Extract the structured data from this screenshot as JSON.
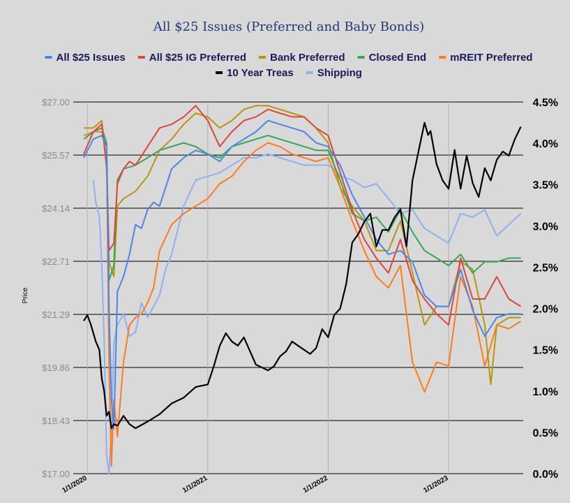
{
  "chart_data": {
    "type": "line",
    "title": "All $25 Issues (Preferred and Baby Bonds)",
    "ylabel": "Price",
    "y_left_ticks": [
      "$27.00",
      "$25.57",
      "$24.14",
      "$22.71",
      "$21.29",
      "$19.86",
      "$18.43",
      "$17.00"
    ],
    "y_right_ticks": [
      "4.5%",
      "4.0%",
      "3.5%",
      "3.0%",
      "2.5%",
      "2.0%",
      "1.5%",
      "1.0%",
      "0.5%",
      "0.0%"
    ],
    "ylim_left": [
      17.0,
      27.0
    ],
    "ylim_right": [
      0.0,
      4.5
    ],
    "x_ticks": [
      "1/1/2020",
      "1/1/2021",
      "1/1/2022",
      "1/1/2023"
    ],
    "xlim": [
      2019.97,
      2023.62
    ],
    "grid": "horizontal",
    "legend_placement": "top",
    "series": [
      {
        "name": "All $25 Issues",
        "color": "#4a86e8",
        "axis": "left",
        "x": [
          2019.97,
          2020.05,
          2020.12,
          2020.16,
          2020.18,
          2020.2,
          2020.22,
          2020.25,
          2020.3,
          2020.35,
          2020.4,
          2020.45,
          2020.5,
          2020.55,
          2020.6,
          2020.7,
          2020.8,
          2020.9,
          2021.0,
          2021.1,
          2021.2,
          2021.3,
          2021.4,
          2021.5,
          2021.6,
          2021.7,
          2021.8,
          2021.9,
          2022.0,
          2022.1,
          2022.2,
          2022.3,
          2022.4,
          2022.5,
          2022.6,
          2022.7,
          2022.8,
          2022.9,
          2023.0,
          2023.1,
          2023.2,
          2023.3,
          2023.4,
          2023.5,
          2023.6
        ],
        "y": [
          25.5,
          26.0,
          26.1,
          25.8,
          21.5,
          19.0,
          18.2,
          21.9,
          22.3,
          22.9,
          23.7,
          23.6,
          24.1,
          24.3,
          24.2,
          25.2,
          25.5,
          25.7,
          25.6,
          25.4,
          25.8,
          26.0,
          26.2,
          26.5,
          26.4,
          26.3,
          26.2,
          25.9,
          25.8,
          25.3,
          24.5,
          23.9,
          23.3,
          22.9,
          23.0,
          22.7,
          21.8,
          21.5,
          21.5,
          22.5,
          21.4,
          20.7,
          21.2,
          21.3,
          21.3
        ]
      },
      {
        "name": "All $25 IG Preferred",
        "color": "#e0443a",
        "axis": "left",
        "x": [
          2019.97,
          2020.05,
          2020.12,
          2020.16,
          2020.18,
          2020.22,
          2020.25,
          2020.3,
          2020.35,
          2020.4,
          2020.5,
          2020.6,
          2020.7,
          2020.8,
          2020.9,
          2021.0,
          2021.1,
          2021.2,
          2021.3,
          2021.4,
          2021.5,
          2021.6,
          2021.7,
          2021.8,
          2021.9,
          2022.0,
          2022.1,
          2022.2,
          2022.3,
          2022.4,
          2022.5,
          2022.6,
          2022.7,
          2022.8,
          2022.9,
          2023.0,
          2023.1,
          2023.2,
          2023.3,
          2023.4,
          2023.5,
          2023.6
        ],
        "y": [
          25.6,
          26.2,
          26.4,
          25.3,
          23.0,
          23.2,
          24.8,
          25.2,
          25.4,
          25.3,
          25.8,
          26.3,
          26.4,
          26.6,
          26.9,
          26.5,
          25.8,
          26.2,
          26.5,
          26.6,
          26.8,
          26.7,
          26.6,
          26.6,
          26.3,
          26.1,
          25.1,
          24.1,
          23.3,
          22.8,
          22.4,
          23.3,
          22.2,
          21.7,
          21.3,
          21.0,
          22.8,
          21.7,
          21.7,
          22.3,
          21.7,
          21.5
        ]
      },
      {
        "name": "Bank Preferred",
        "color": "#b8960c",
        "axis": "left",
        "x": [
          2019.97,
          2020.05,
          2020.12,
          2020.16,
          2020.18,
          2020.22,
          2020.25,
          2020.3,
          2020.4,
          2020.5,
          2020.6,
          2020.7,
          2020.8,
          2020.9,
          2021.0,
          2021.1,
          2021.2,
          2021.3,
          2021.4,
          2021.5,
          2021.6,
          2021.7,
          2021.8,
          2021.9,
          2022.0,
          2022.1,
          2022.2,
          2022.3,
          2022.4,
          2022.5,
          2022.6,
          2022.7,
          2022.8,
          2022.9,
          2023.0,
          2023.1,
          2023.2,
          2023.3,
          2023.35,
          2023.4,
          2023.5,
          2023.6
        ],
        "y": [
          26.3,
          26.3,
          26.5,
          25.2,
          22.7,
          22.3,
          24.2,
          24.4,
          24.6,
          25.0,
          25.7,
          26.0,
          26.4,
          26.7,
          26.6,
          26.3,
          26.5,
          26.8,
          26.9,
          26.9,
          26.8,
          26.7,
          26.6,
          26.3,
          25.9,
          24.7,
          24.2,
          23.8,
          23.0,
          23.0,
          23.8,
          22.4,
          21.0,
          21.5,
          21.5,
          22.7,
          22.5,
          21.0,
          19.4,
          21.0,
          21.2,
          21.2
        ]
      },
      {
        "name": "Closed End",
        "color": "#34a853",
        "axis": "left",
        "x": [
          2019.97,
          2020.05,
          2020.12,
          2020.16,
          2020.18,
          2020.22,
          2020.25,
          2020.3,
          2020.4,
          2020.5,
          2020.6,
          2020.7,
          2020.8,
          2020.9,
          2021.0,
          2021.1,
          2021.2,
          2021.3,
          2021.4,
          2021.5,
          2021.6,
          2021.7,
          2021.8,
          2021.9,
          2022.0,
          2022.1,
          2022.2,
          2022.3,
          2022.4,
          2022.5,
          2022.6,
          2022.7,
          2022.8,
          2022.9,
          2023.0,
          2023.1,
          2023.2,
          2023.3,
          2023.4,
          2023.5,
          2023.6
        ],
        "y": [
          26.0,
          26.2,
          26.3,
          25.9,
          22.2,
          22.6,
          24.9,
          25.2,
          25.3,
          25.5,
          25.7,
          25.8,
          25.9,
          25.8,
          25.6,
          25.5,
          25.8,
          25.9,
          26.0,
          26.1,
          26.0,
          25.9,
          25.8,
          25.7,
          25.7,
          24.9,
          24.0,
          23.8,
          23.9,
          23.5,
          24.1,
          23.5,
          23.0,
          22.8,
          22.6,
          22.9,
          22.4,
          22.7,
          22.7,
          22.8,
          22.8
        ]
      },
      {
        "name": "mREIT Preferred",
        "color": "#ff7b1a",
        "axis": "left",
        "x": [
          2019.97,
          2020.05,
          2020.12,
          2020.16,
          2020.18,
          2020.2,
          2020.22,
          2020.25,
          2020.3,
          2020.35,
          2020.4,
          2020.45,
          2020.5,
          2020.55,
          2020.6,
          2020.7,
          2020.8,
          2020.9,
          2021.0,
          2021.1,
          2021.2,
          2021.3,
          2021.4,
          2021.5,
          2021.6,
          2021.7,
          2021.8,
          2021.9,
          2022.0,
          2022.1,
          2022.2,
          2022.3,
          2022.4,
          2022.5,
          2022.6,
          2022.7,
          2022.8,
          2022.9,
          2023.0,
          2023.1,
          2023.2,
          2023.3,
          2023.4,
          2023.5,
          2023.6
        ],
        "y": [
          26.1,
          26.2,
          26.2,
          25.8,
          20.0,
          17.2,
          19.0,
          18.0,
          20.0,
          21.0,
          21.2,
          21.3,
          21.6,
          22.0,
          23.0,
          23.7,
          24.0,
          24.2,
          24.4,
          24.8,
          25.0,
          25.4,
          25.7,
          25.9,
          25.8,
          25.6,
          25.5,
          25.4,
          25.5,
          24.7,
          23.8,
          23.0,
          22.3,
          22.0,
          22.6,
          20.0,
          19.2,
          20.0,
          19.9,
          22.3,
          21.5,
          19.9,
          21.0,
          20.9,
          21.1
        ]
      },
      {
        "name": "10 Year Treas",
        "color": "#000000",
        "axis": "right",
        "x": [
          2019.97,
          2020.0,
          2020.03,
          2020.07,
          2020.1,
          2020.12,
          2020.14,
          2020.16,
          2020.18,
          2020.2,
          2020.22,
          2020.25,
          2020.3,
          2020.35,
          2020.4,
          2020.5,
          2020.6,
          2020.7,
          2020.8,
          2020.9,
          2021.0,
          2021.05,
          2021.1,
          2021.15,
          2021.2,
          2021.25,
          2021.3,
          2021.4,
          2021.5,
          2021.55,
          2021.6,
          2021.65,
          2021.7,
          2021.75,
          2021.8,
          2021.85,
          2021.9,
          2021.95,
          2022.0,
          2022.05,
          2022.1,
          2022.15,
          2022.2,
          2022.25,
          2022.3,
          2022.35,
          2022.4,
          2022.45,
          2022.5,
          2022.55,
          2022.6,
          2022.65,
          2022.7,
          2022.75,
          2022.8,
          2022.83,
          2022.85,
          2022.9,
          2022.95,
          2023.0,
          2023.05,
          2023.1,
          2023.15,
          2023.2,
          2023.25,
          2023.3,
          2023.35,
          2023.4,
          2023.45,
          2023.5,
          2023.55,
          2023.6
        ],
        "y": [
          1.85,
          1.92,
          1.8,
          1.6,
          1.5,
          1.15,
          1.0,
          0.7,
          0.75,
          0.55,
          0.6,
          0.58,
          0.7,
          0.6,
          0.55,
          0.63,
          0.72,
          0.85,
          0.92,
          1.05,
          1.08,
          1.3,
          1.55,
          1.7,
          1.6,
          1.55,
          1.65,
          1.32,
          1.25,
          1.3,
          1.42,
          1.48,
          1.6,
          1.55,
          1.5,
          1.45,
          1.52,
          1.75,
          1.65,
          1.92,
          2.0,
          2.3,
          2.8,
          2.9,
          3.05,
          3.15,
          2.75,
          2.95,
          2.95,
          3.1,
          3.2,
          2.75,
          3.55,
          3.9,
          4.25,
          4.1,
          4.15,
          3.75,
          3.55,
          3.45,
          3.92,
          3.45,
          3.85,
          3.52,
          3.35,
          3.7,
          3.55,
          3.8,
          3.9,
          3.85,
          4.05,
          4.2
        ]
      },
      {
        "name": "Shipping",
        "color": "#8fb0f2",
        "axis": "left",
        "x": [
          2020.05,
          2020.07,
          2020.1,
          2020.12,
          2020.14,
          2020.16,
          2020.18,
          2020.2,
          2020.22,
          2020.25,
          2020.3,
          2020.35,
          2020.4,
          2020.45,
          2020.5,
          2020.6,
          2020.65,
          2020.7,
          2020.8,
          2020.9,
          2021.0,
          2021.1,
          2021.2,
          2021.3,
          2021.4,
          2021.5,
          2021.6,
          2021.7,
          2021.8,
          2021.9,
          2022.0,
          2022.05,
          2022.1,
          2022.2,
          2022.3,
          2022.4,
          2022.5,
          2022.6,
          2022.7,
          2022.8,
          2022.9,
          2023.0,
          2023.1,
          2023.2,
          2023.3,
          2023.4,
          2023.5,
          2023.6
        ],
        "y": [
          24.9,
          24.3,
          23.9,
          22.6,
          20.6,
          17.5,
          17.0,
          18.2,
          20.5,
          21.0,
          21.3,
          20.7,
          20.8,
          21.6,
          21.2,
          21.8,
          22.5,
          22.9,
          24.2,
          24.9,
          25.0,
          25.1,
          25.3,
          25.5,
          25.5,
          25.6,
          25.5,
          25.4,
          25.3,
          25.3,
          25.3,
          25.2,
          25.0,
          24.9,
          24.7,
          24.8,
          24.4,
          24.0,
          24.1,
          23.6,
          23.4,
          23.2,
          24.0,
          23.9,
          24.1,
          23.4,
          23.7,
          24.0
        ]
      }
    ]
  }
}
